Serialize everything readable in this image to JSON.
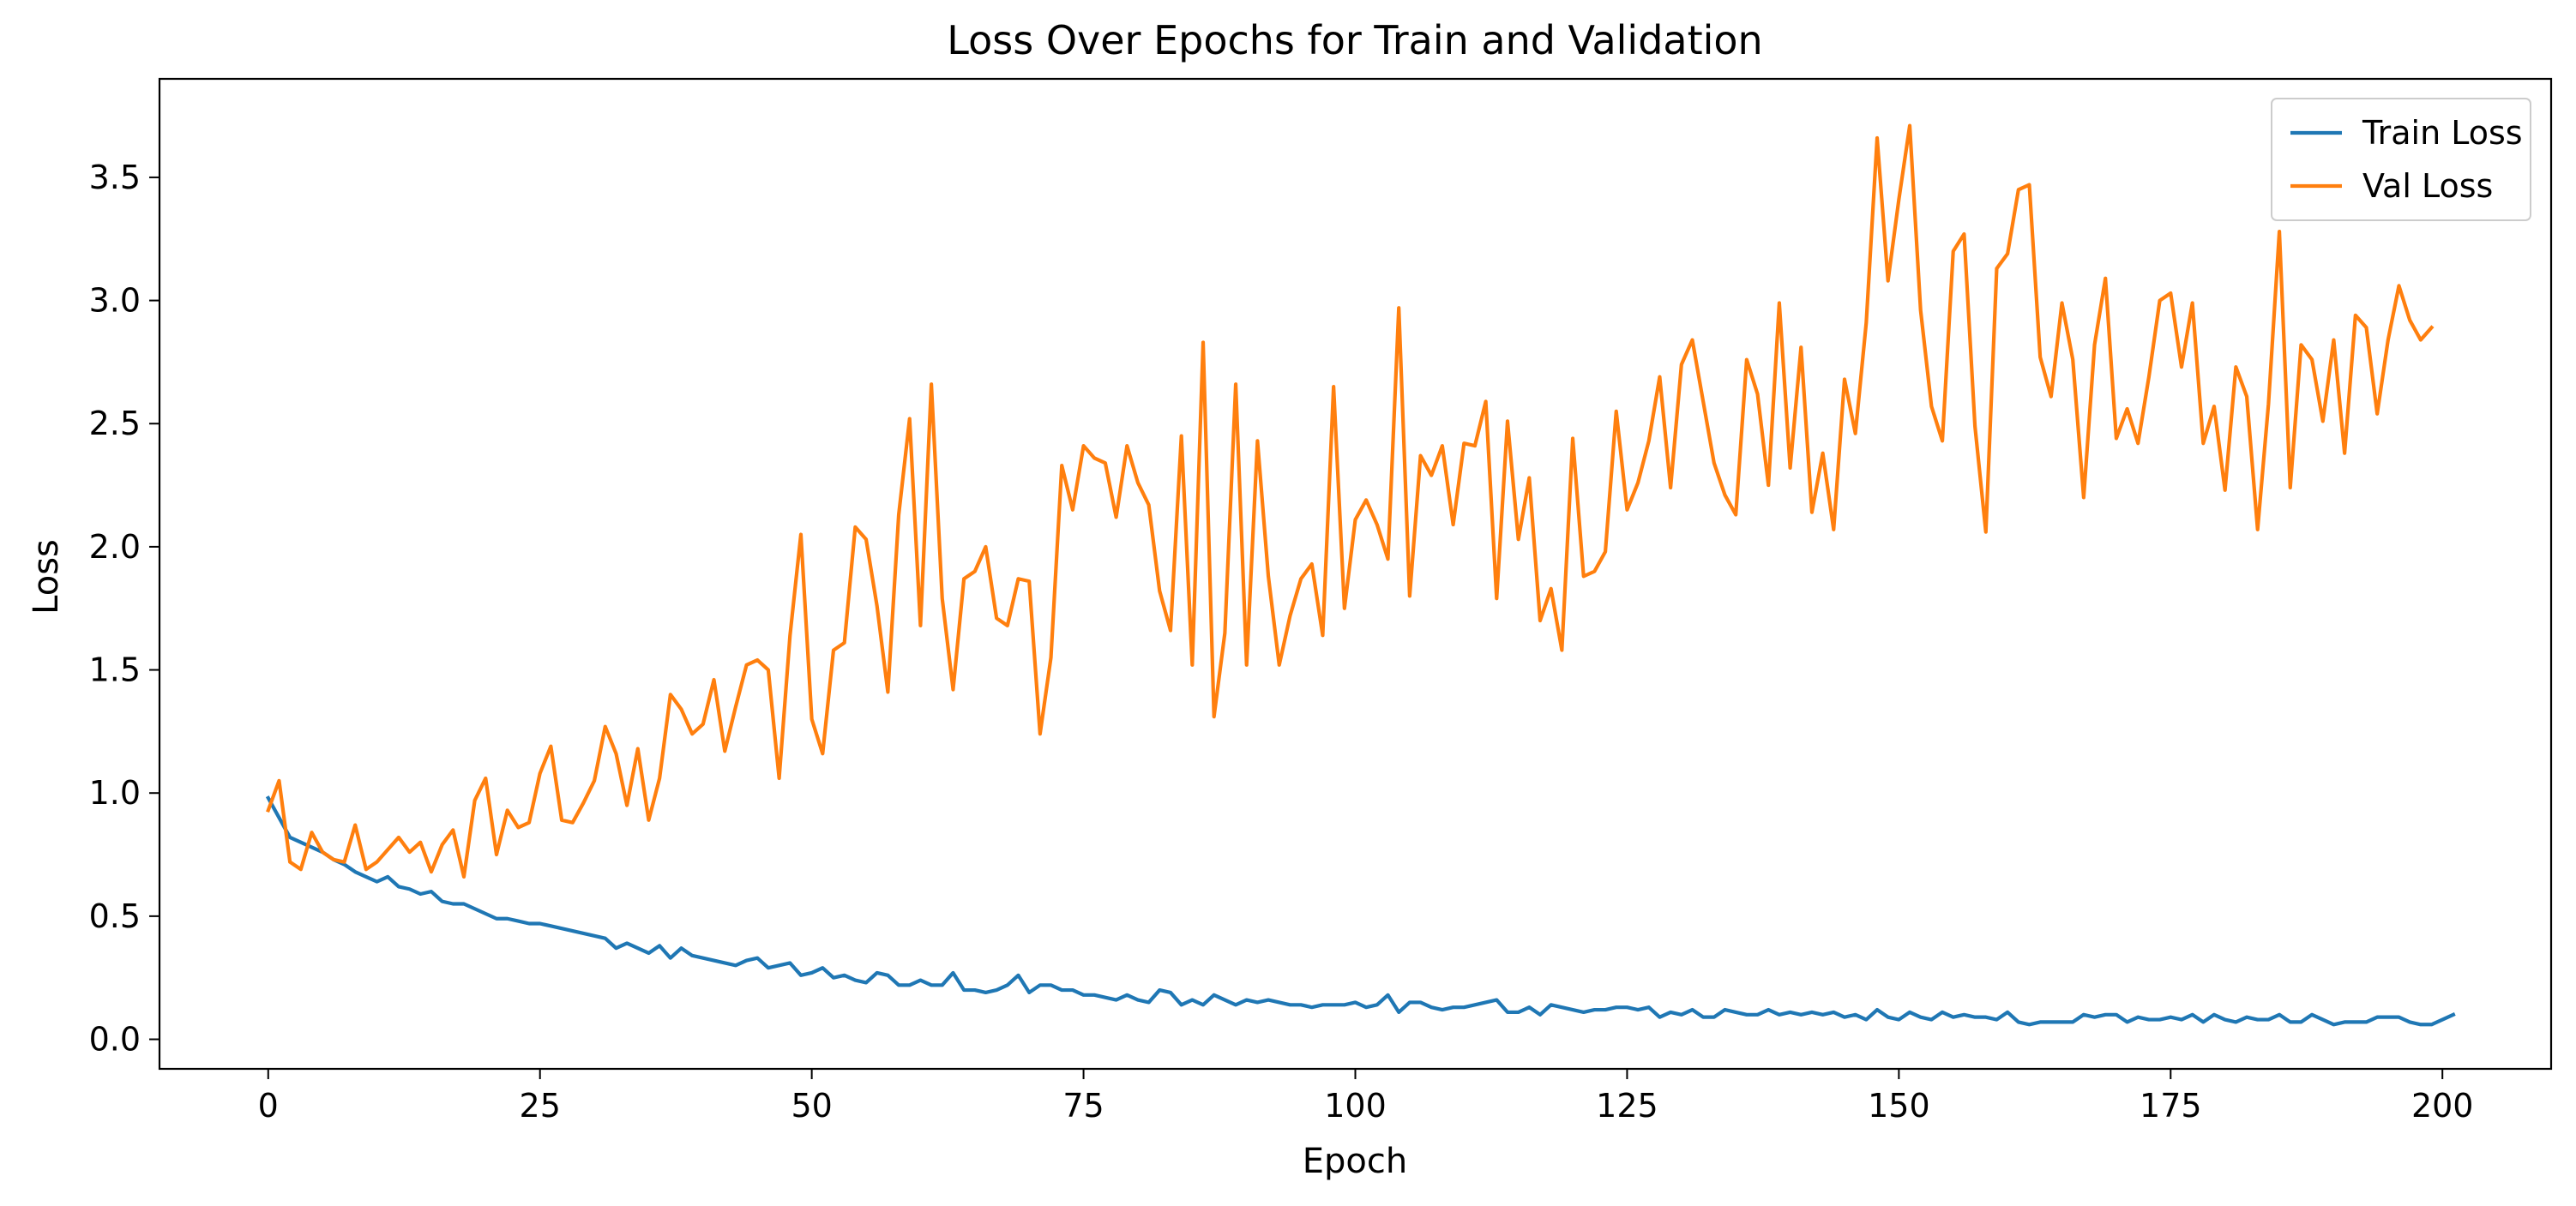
{
  "chart_data": {
    "type": "line",
    "title": "Loss Over Epochs for Train and Validation",
    "xlabel": "Epoch",
    "ylabel": "Loss",
    "xlim": [
      -10,
      210
    ],
    "ylim": [
      -0.12,
      3.9
    ],
    "xticks": [
      0,
      25,
      50,
      75,
      100,
      125,
      150,
      175,
      200
    ],
    "yticks": [
      0.0,
      0.5,
      1.0,
      1.5,
      2.0,
      2.5,
      3.0,
      3.5
    ],
    "grid": false,
    "legend": {
      "position": "top-right"
    },
    "x": {
      "start": 0,
      "step": 1,
      "count": 200
    },
    "series": [
      {
        "name": "Train Loss",
        "color": "#1f77b4",
        "values": [
          0.98,
          0.9,
          0.82,
          0.8,
          0.78,
          0.76,
          0.73,
          0.71,
          0.68,
          0.66,
          0.64,
          0.66,
          0.62,
          0.61,
          0.59,
          0.6,
          0.56,
          0.55,
          0.55,
          0.53,
          0.51,
          0.49,
          0.49,
          0.48,
          0.47,
          0.47,
          0.46,
          0.45,
          0.44,
          0.43,
          0.42,
          0.41,
          0.37,
          0.39,
          0.37,
          0.35,
          0.38,
          0.33,
          0.37,
          0.34,
          0.33,
          0.32,
          0.31,
          0.3,
          0.32,
          0.33,
          0.29,
          0.3,
          0.31,
          0.26,
          0.27,
          0.29,
          0.25,
          0.26,
          0.24,
          0.23,
          0.27,
          0.26,
          0.22,
          0.22,
          0.24,
          0.22,
          0.22,
          0.27,
          0.2,
          0.2,
          0.19,
          0.2,
          0.22,
          0.26,
          0.19,
          0.22,
          0.22,
          0.2,
          0.2,
          0.18,
          0.18,
          0.17,
          0.16,
          0.18,
          0.16,
          0.15,
          0.2,
          0.19,
          0.14,
          0.16,
          0.14,
          0.18,
          0.16,
          0.14,
          0.16,
          0.15,
          0.16,
          0.15,
          0.14,
          0.14,
          0.13,
          0.14,
          0.14,
          0.14,
          0.15,
          0.13,
          0.14,
          0.18,
          0.11,
          0.15,
          0.15,
          0.13,
          0.12,
          0.13,
          0.13,
          0.14,
          0.15,
          0.16,
          0.11,
          0.11,
          0.13,
          0.1,
          0.14,
          0.13,
          0.12,
          0.11,
          0.12,
          0.12,
          0.13,
          0.13,
          0.12,
          0.13,
          0.09,
          0.11,
          0.1,
          0.12,
          0.09,
          0.09,
          0.12,
          0.11,
          0.1,
          0.1,
          0.12,
          0.1,
          0.11,
          0.1,
          0.11,
          0.1,
          0.11,
          0.09,
          0.1,
          0.08,
          0.12,
          0.09,
          0.08,
          0.11,
          0.09,
          0.08,
          0.11,
          0.09,
          0.1,
          0.09,
          0.09,
          0.08,
          0.11,
          0.07,
          0.06,
          0.07,
          0.07,
          0.07,
          0.07,
          0.1,
          0.09,
          0.1,
          0.1,
          0.07,
          0.09,
          0.08,
          0.08,
          0.09,
          0.08,
          0.1,
          0.07,
          0.1,
          0.08,
          0.07,
          0.09,
          0.08,
          0.08,
          0.1,
          0.07,
          0.07,
          0.1,
          0.08,
          0.06,
          0.07,
          0.07,
          0.07,
          0.09,
          0.09,
          0.09,
          0.07,
          0.06,
          0.06,
          0.08,
          0.1
        ]
      },
      {
        "name": "Val Loss",
        "color": "#ff7f0e",
        "values": [
          0.93,
          1.05,
          0.72,
          0.69,
          0.84,
          0.76,
          0.73,
          0.72,
          0.87,
          0.69,
          0.72,
          0.77,
          0.82,
          0.76,
          0.8,
          0.68,
          0.79,
          0.85,
          0.66,
          0.97,
          1.06,
          0.75,
          0.93,
          0.86,
          0.88,
          1.08,
          1.19,
          0.89,
          0.88,
          0.96,
          1.05,
          1.27,
          1.16,
          0.95,
          1.18,
          0.89,
          1.06,
          1.4,
          1.34,
          1.24,
          1.28,
          1.46,
          1.17,
          1.35,
          1.52,
          1.54,
          1.5,
          1.06,
          1.64,
          2.05,
          1.3,
          1.16,
          1.58,
          1.61,
          2.08,
          2.03,
          1.76,
          1.41,
          2.13,
          2.52,
          1.68,
          2.66,
          1.79,
          1.42,
          1.87,
          1.9,
          2.0,
          1.71,
          1.68,
          1.87,
          1.86,
          1.24,
          1.55,
          2.33,
          2.15,
          2.41,
          2.36,
          2.34,
          2.12,
          2.41,
          2.26,
          2.17,
          1.82,
          1.66,
          2.45,
          1.52,
          2.83,
          1.31,
          1.65,
          2.66,
          1.52,
          2.43,
          1.88,
          1.52,
          1.72,
          1.87,
          1.93,
          1.64,
          2.65,
          1.75,
          2.11,
          2.19,
          2.09,
          1.95,
          2.97,
          1.8,
          2.37,
          2.29,
          2.41,
          2.09,
          2.42,
          2.41,
          2.59,
          1.79,
          2.51,
          2.03,
          2.28,
          1.7,
          1.83,
          1.58,
          2.44,
          1.88,
          1.9,
          1.98,
          2.55,
          2.15,
          2.26,
          2.43,
          2.69,
          2.24,
          2.74,
          2.84,
          2.59,
          2.34,
          2.21,
          2.13,
          2.76,
          2.62,
          2.25,
          2.99,
          2.32,
          2.81,
          2.14,
          2.38,
          2.07,
          2.68,
          2.46,
          2.91,
          3.66,
          3.08,
          3.41,
          3.71,
          2.96,
          2.57,
          2.43,
          3.2,
          3.27,
          2.49,
          2.06,
          3.13,
          3.19,
          3.45,
          3.47,
          2.77,
          2.61,
          2.99,
          2.76,
          2.2,
          2.82,
          3.09,
          2.44,
          2.56,
          2.42,
          2.69,
          3.0,
          3.03,
          2.73,
          2.99,
          2.42,
          2.57,
          2.23,
          2.73,
          2.61,
          2.07,
          2.58,
          3.28,
          2.24,
          2.82,
          2.76,
          2.51,
          2.84,
          2.38,
          2.94,
          2.89,
          2.54,
          2.84,
          3.06,
          2.92,
          2.84,
          2.89
        ]
      }
    ]
  }
}
